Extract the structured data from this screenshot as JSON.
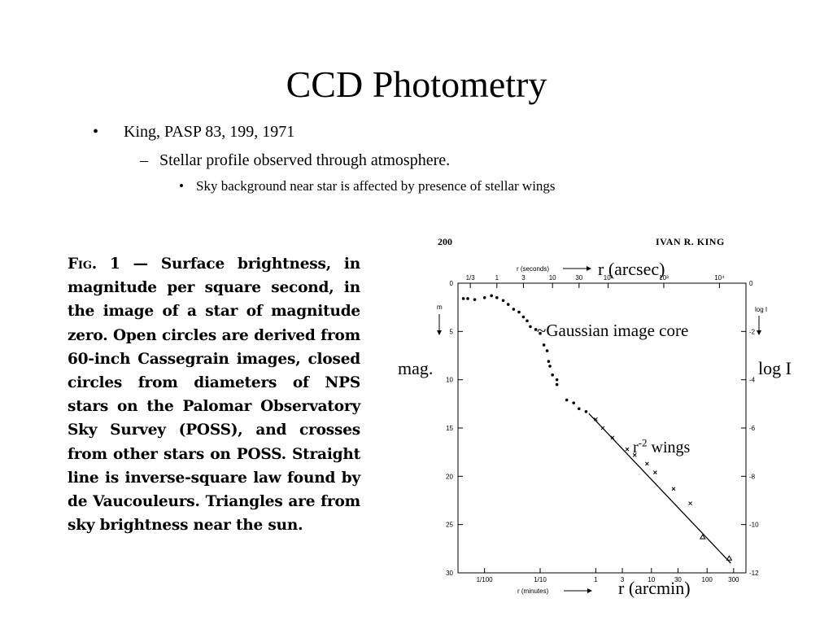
{
  "slide": {
    "title": "CCD Photometry",
    "bullets": {
      "level1": {
        "dot": "•",
        "text": "King, PASP 83, 199, 1971"
      },
      "level2": {
        "dot": "–",
        "text": "Stellar profile observed through atmosphere."
      },
      "level3": {
        "dot": "•",
        "text": "Sky background near star is affected by presence of stellar wings"
      }
    }
  },
  "caption": {
    "label": "Fig. 1",
    "text": "— Surface brightness, in magnitude per square second, in the image of a star of magnitude zero. Open circles are derived from 60-inch Cassegrain images, closed circles from diameters of NPS stars on the Palomar Observatory Sky Survey (POSS), and crosses from other stars on POSS. Straight line is inverse-square law found by de Vaucouleurs. Triangles are from sky brightness near the sun."
  },
  "figure": {
    "page_number": "200",
    "author": "IVAN R. KING",
    "top_axis_label": "r (seconds)",
    "bottom_axis_label": "r (minutes)",
    "left_axis_symbol": "m",
    "right_axis_symbol": "log I",
    "top_ticks": [
      "1/3",
      "1",
      "3",
      "10",
      "30",
      "10²",
      "10³",
      "10⁴"
    ],
    "bottom_ticks": [
      "1/100",
      "1/10",
      "1",
      "3",
      "10",
      "30",
      "100",
      "300"
    ],
    "left_ticks": [
      "0",
      "5",
      "10",
      "15",
      "20",
      "25",
      "30"
    ],
    "right_ticks": [
      "0",
      "-2",
      "-4",
      "-6",
      "-8",
      "-10",
      "-12"
    ]
  },
  "annotations": {
    "arcsec": "r (arcsec)",
    "gaussian": "~Gaussian image core",
    "mag": "mag.",
    "log_i": "log I",
    "wings_prefix": "r",
    "wings_sup": "-2",
    "wings_suffix": " wings",
    "arcmin": "r (arcmin)"
  },
  "chart_data": {
    "type": "scatter",
    "xscale": "log",
    "x_unit": "arcsec",
    "xlim": [
      0.2,
      30000
    ],
    "ylim": [
      30,
      0
    ],
    "y2lim": [
      -12,
      0
    ],
    "series": [
      {
        "marker": "circle",
        "points": [
          [
            0.25,
            1.6
          ],
          [
            0.3,
            1.6
          ],
          [
            0.4,
            1.7
          ],
          [
            0.6,
            1.5
          ],
          [
            0.8,
            1.3
          ],
          [
            1.0,
            1.5
          ],
          [
            1.3,
            1.8
          ],
          [
            1.6,
            2.2
          ],
          [
            2.0,
            2.7
          ],
          [
            2.5,
            3.0
          ],
          [
            3.0,
            3.5
          ],
          [
            3.5,
            3.9
          ],
          [
            4.0,
            4.5
          ],
          [
            5.0,
            4.8
          ],
          [
            6.0,
            5.2
          ],
          [
            7.0,
            6.4
          ],
          [
            8.0,
            7.0
          ],
          [
            8.5,
            8.1
          ],
          [
            9.0,
            8.6
          ],
          [
            10.0,
            9.5
          ],
          [
            12.0,
            10.0
          ],
          [
            12.0,
            10.5
          ],
          [
            18.0,
            12.1
          ],
          [
            24.0,
            12.4
          ],
          [
            30.0,
            13.0
          ],
          [
            40.0,
            13.3
          ]
        ]
      },
      {
        "marker": "cross",
        "points": [
          [
            60,
            14.1
          ],
          [
            80,
            15.0
          ],
          [
            120,
            16.0
          ],
          [
            220,
            17.2
          ],
          [
            300,
            17.8
          ],
          [
            500,
            18.7
          ],
          [
            700,
            19.6
          ],
          [
            1500,
            21.3
          ],
          [
            3000,
            22.8
          ]
        ]
      },
      {
        "marker": "triangle",
        "points": [
          [
            5000,
            26.3
          ],
          [
            15000,
            28.5
          ]
        ]
      },
      {
        "marker": "line",
        "points": [
          [
            45,
            13.5
          ],
          [
            16000,
            29.0
          ]
        ]
      }
    ]
  }
}
